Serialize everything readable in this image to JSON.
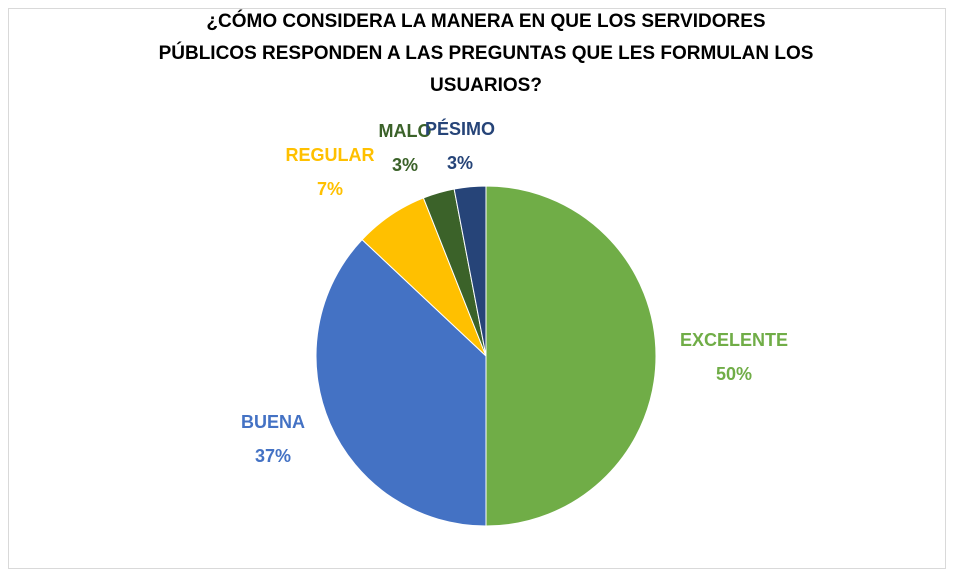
{
  "chart_data": {
    "type": "pie",
    "title": [
      "¿CÓMO CONSIDERA LA MANERA EN QUE LOS SERVIDORES",
      "PÚBLICOS RESPONDEN A LAS PREGUNTAS QUE LES FORMULAN LOS",
      "USUARIOS?"
    ],
    "categories": [
      "EXCELENTE",
      "BUENA",
      "REGULAR",
      "MALO",
      "PÉSIMO"
    ],
    "values": [
      50,
      37,
      7,
      3,
      3
    ],
    "value_labels": [
      "50%",
      "37%",
      "7%",
      "3%",
      "3%"
    ],
    "colors": [
      "#70ad47",
      "#4472c4",
      "#ffc000",
      "#3b6229",
      "#264478"
    ]
  }
}
